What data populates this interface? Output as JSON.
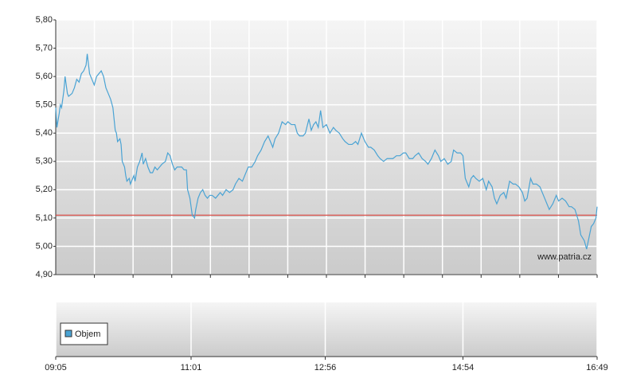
{
  "chart_data": {
    "type": "line",
    "x": [
      545,
      546,
      548,
      549,
      550,
      552,
      553,
      555,
      556,
      559,
      561,
      563,
      565,
      567,
      569,
      571,
      572,
      574,
      576,
      578,
      580,
      582,
      584,
      586,
      588,
      590,
      592,
      594,
      596,
      597,
      598,
      600,
      601,
      602,
      604,
      605,
      606,
      608,
      609,
      611,
      612,
      613,
      615,
      617,
      619,
      620,
      622,
      624,
      626,
      628,
      630,
      632,
      634,
      636,
      639,
      641,
      643,
      645,
      647,
      649,
      651,
      653,
      655,
      657,
      658,
      660,
      661,
      662,
      664,
      665,
      667,
      669,
      671,
      673,
      675,
      677,
      679,
      682,
      684,
      686,
      688,
      691,
      694,
      697,
      699,
      702,
      705,
      707,
      710,
      713,
      716,
      718,
      721,
      724,
      727,
      729,
      731,
      733,
      736,
      739,
      742,
      744,
      747,
      750,
      752,
      754,
      757,
      759,
      762,
      764,
      766,
      768,
      770,
      772,
      774,
      777,
      780,
      783,
      785,
      788,
      791,
      793,
      796,
      799,
      802,
      804,
      807,
      810,
      813,
      815,
      818,
      821,
      823,
      826,
      829,
      832,
      834,
      837,
      840,
      843,
      845,
      848,
      851,
      853,
      856,
      859,
      862,
      864,
      867,
      870,
      873,
      875,
      878,
      881,
      884,
      886,
      889,
      892,
      894,
      896,
      899,
      901,
      903,
      905,
      908,
      911,
      914,
      916,
      919,
      921,
      923,
      926,
      929,
      931,
      934,
      937,
      939,
      942,
      945,
      947,
      949,
      952,
      954,
      957,
      960,
      963,
      965,
      968,
      971,
      974,
      976,
      979,
      982,
      985,
      987,
      990,
      993,
      995,
      998,
      1000,
      1002,
      1004,
      1006,
      1008,
      1009
    ],
    "values": [
      5.49,
      5.42,
      5.47,
      5.5,
      5.49,
      5.55,
      5.6,
      5.54,
      5.53,
      5.54,
      5.56,
      5.59,
      5.58,
      5.61,
      5.62,
      5.64,
      5.68,
      5.61,
      5.59,
      5.57,
      5.6,
      5.61,
      5.62,
      5.6,
      5.56,
      5.54,
      5.52,
      5.49,
      5.41,
      5.4,
      5.37,
      5.38,
      5.36,
      5.3,
      5.28,
      5.25,
      5.23,
      5.24,
      5.22,
      5.24,
      5.25,
      5.23,
      5.28,
      5.3,
      5.33,
      5.29,
      5.31,
      5.28,
      5.26,
      5.26,
      5.28,
      5.27,
      5.28,
      5.29,
      5.3,
      5.33,
      5.32,
      5.29,
      5.27,
      5.28,
      5.28,
      5.28,
      5.27,
      5.27,
      5.2,
      5.17,
      5.14,
      5.11,
      5.1,
      5.13,
      5.17,
      5.19,
      5.2,
      5.18,
      5.17,
      5.18,
      5.18,
      5.17,
      5.18,
      5.19,
      5.18,
      5.2,
      5.19,
      5.2,
      5.22,
      5.24,
      5.23,
      5.25,
      5.28,
      5.28,
      5.3,
      5.32,
      5.34,
      5.37,
      5.39,
      5.37,
      5.35,
      5.38,
      5.4,
      5.44,
      5.43,
      5.44,
      5.43,
      5.43,
      5.4,
      5.39,
      5.39,
      5.4,
      5.45,
      5.41,
      5.43,
      5.44,
      5.42,
      5.48,
      5.42,
      5.43,
      5.4,
      5.42,
      5.41,
      5.4,
      5.38,
      5.37,
      5.36,
      5.36,
      5.37,
      5.36,
      5.4,
      5.37,
      5.35,
      5.35,
      5.34,
      5.32,
      5.31,
      5.3,
      5.31,
      5.31,
      5.31,
      5.32,
      5.32,
      5.33,
      5.33,
      5.31,
      5.31,
      5.32,
      5.33,
      5.31,
      5.3,
      5.29,
      5.31,
      5.34,
      5.32,
      5.3,
      5.31,
      5.29,
      5.3,
      5.34,
      5.33,
      5.33,
      5.32,
      5.24,
      5.21,
      5.24,
      5.25,
      5.24,
      5.23,
      5.24,
      5.2,
      5.23,
      5.21,
      5.17,
      5.15,
      5.18,
      5.19,
      5.17,
      5.23,
      5.22,
      5.22,
      5.21,
      5.19,
      5.16,
      5.17,
      5.24,
      5.22,
      5.22,
      5.21,
      5.18,
      5.16,
      5.13,
      5.15,
      5.18,
      5.16,
      5.17,
      5.16,
      5.14,
      5.14,
      5.13,
      5.09,
      5.04,
      5.02,
      4.99,
      5.03,
      5.07,
      5.08,
      5.1,
      5.14
    ],
    "color": "#4aa3d4",
    "reference_line": 5.11,
    "reference_color": "#d9413a",
    "xlim": [
      545,
      1009
    ],
    "xticks": [
      {
        "value": 545,
        "label": "09:05"
      },
      {
        "value": 661,
        "label": "11:01"
      },
      {
        "value": 776,
        "label": "12:56"
      },
      {
        "value": 894,
        "label": "14:54"
      },
      {
        "value": 1009,
        "label": "16:49"
      }
    ],
    "ylim": [
      4.9,
      5.8
    ],
    "yticks": [
      {
        "value": 4.9,
        "label": "4,90"
      },
      {
        "value": 5.0,
        "label": "5,00"
      },
      {
        "value": 5.1,
        "label": "5,10"
      },
      {
        "value": 5.2,
        "label": "5,20"
      },
      {
        "value": 5.3,
        "label": "5,30"
      },
      {
        "value": 5.4,
        "label": "5,40"
      },
      {
        "value": 5.5,
        "label": "5,50"
      },
      {
        "value": 5.6,
        "label": "5,60"
      },
      {
        "value": 5.7,
        "label": "5,70"
      },
      {
        "value": 5.8,
        "label": "5,80"
      }
    ],
    "grid": true,
    "volume_legend": "Objem",
    "volume_color": "#4aa3d4",
    "watermark": "www.patria.cz"
  }
}
